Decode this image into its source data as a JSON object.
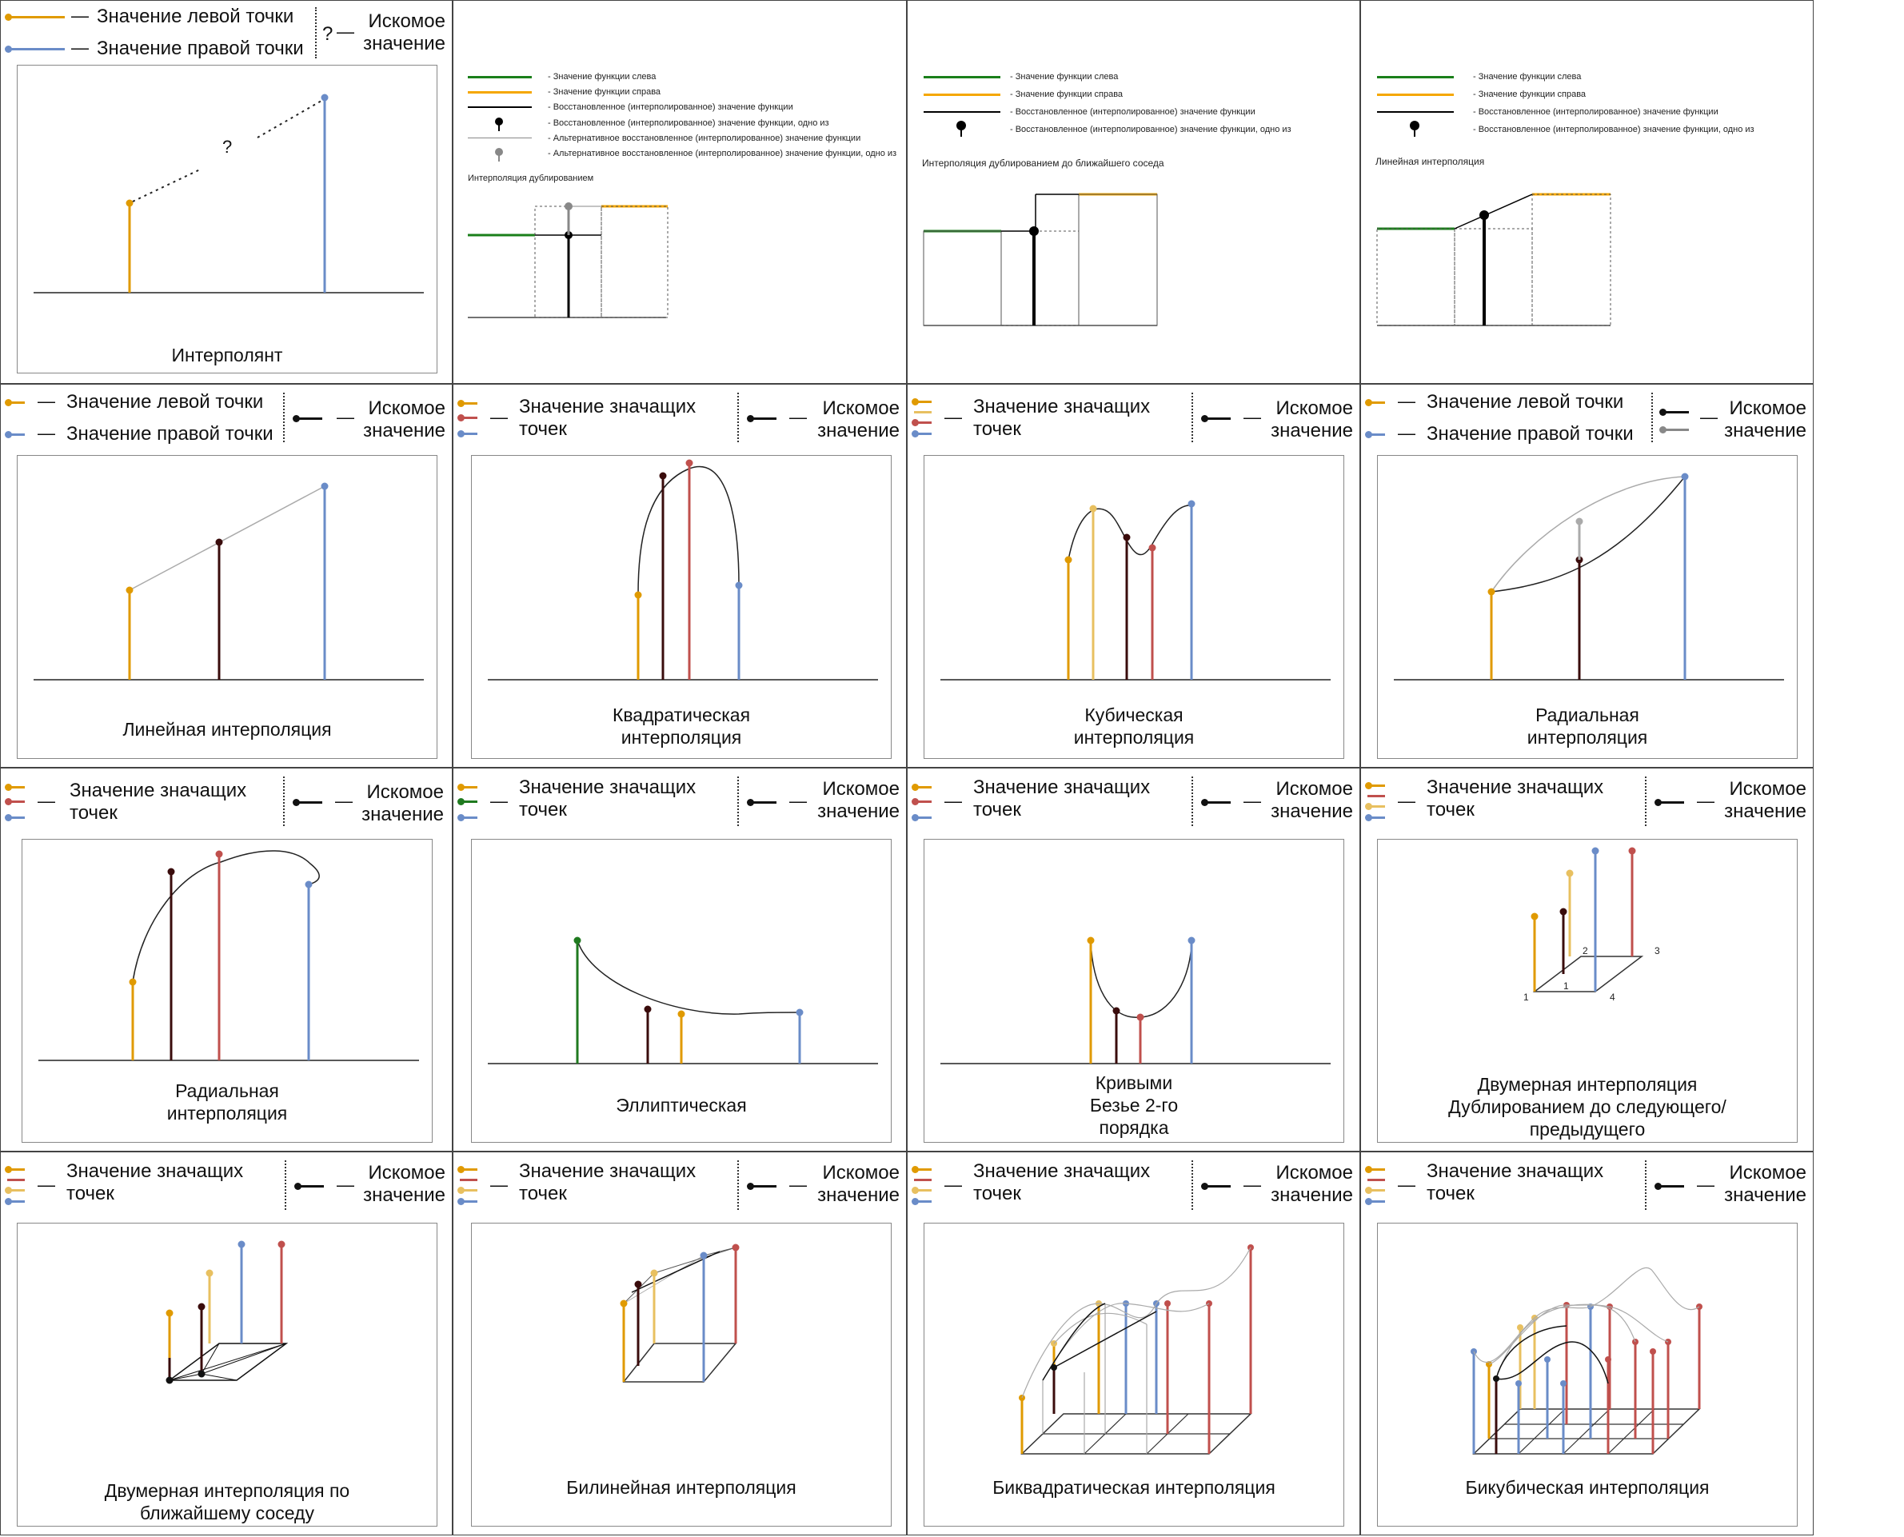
{
  "colors": {
    "orange": "#e09a00",
    "blue": "#6a8cc8",
    "red": "#c0504d",
    "darkred": "#3a0c0c",
    "yellow": "#e8c060",
    "green": "#1f7a1f",
    "func_left": "#1a7f1a",
    "func_right": "#f5a700",
    "black": "#000000",
    "gray": "#888888"
  },
  "legend": {
    "left_point": "Значение левой точки",
    "right_point": "Значение правой точки",
    "question": "?",
    "target": "Искомое значение",
    "target_l1": "Искомое",
    "target_l2": "значение",
    "sig_points_l1": "Значение значащих",
    "sig_points_l2": "точек",
    "dash": "—"
  },
  "small_legend": {
    "f_left": "- Значение функции слева",
    "f_right": "- Значение функции справа",
    "restored": "- Восстановленное (интерполированное) значение функции",
    "restored_one": "- Восстановленное (интерполированное) значение функции, одно из",
    "alt_restored": "- Альтернативное восстановленное (интерполированное) значение функции",
    "alt_restored_one": "- Альтернативное восстановленное (интерполированное) значение функции, одно из"
  },
  "panels": {
    "p1": {
      "caption": "Интерполянт",
      "question": "?"
    },
    "p2": {
      "title": "Интерполяция дублированием"
    },
    "p3": {
      "title": "Интерполяция дублированием до ближайшего соседа"
    },
    "p4": {
      "title": "Линейная интерполяция"
    },
    "p5": {
      "caption": "Линейная интерполяция"
    },
    "p6": {
      "caption_l1": "Квадратическая",
      "caption_l2": "интерполяция"
    },
    "p7": {
      "caption_l1": "Кубическая",
      "caption_l2": "интерполяция"
    },
    "p8": {
      "caption_l1": "Радиальная",
      "caption_l2": "интерполяция"
    },
    "p9": {
      "caption_l1": "Радиальная",
      "caption_l2": "интерполяция"
    },
    "p10": {
      "caption": "Эллиптическая"
    },
    "p11": {
      "caption_l1": "Кривыми",
      "caption_l2": "Безье 2-го",
      "caption_l3": "порядка"
    },
    "p12": {
      "caption_l1": "Двумерная интерполяция",
      "caption_l2": "Дублированием до следующего/",
      "caption_l3": "предыдущего",
      "n1": "1",
      "n2": "2",
      "n3": "3",
      "n4": "4",
      "n5": "1"
    },
    "p13": {
      "caption_l1": "Двумерная интерполяция по",
      "caption_l2": "ближайшему соседу"
    },
    "p14": {
      "caption": "Билинейная интерполяция"
    },
    "p15": {
      "caption": "Биквадратическая интерполяция"
    },
    "p16": {
      "caption": "Бикубическая интерполяция"
    }
  }
}
